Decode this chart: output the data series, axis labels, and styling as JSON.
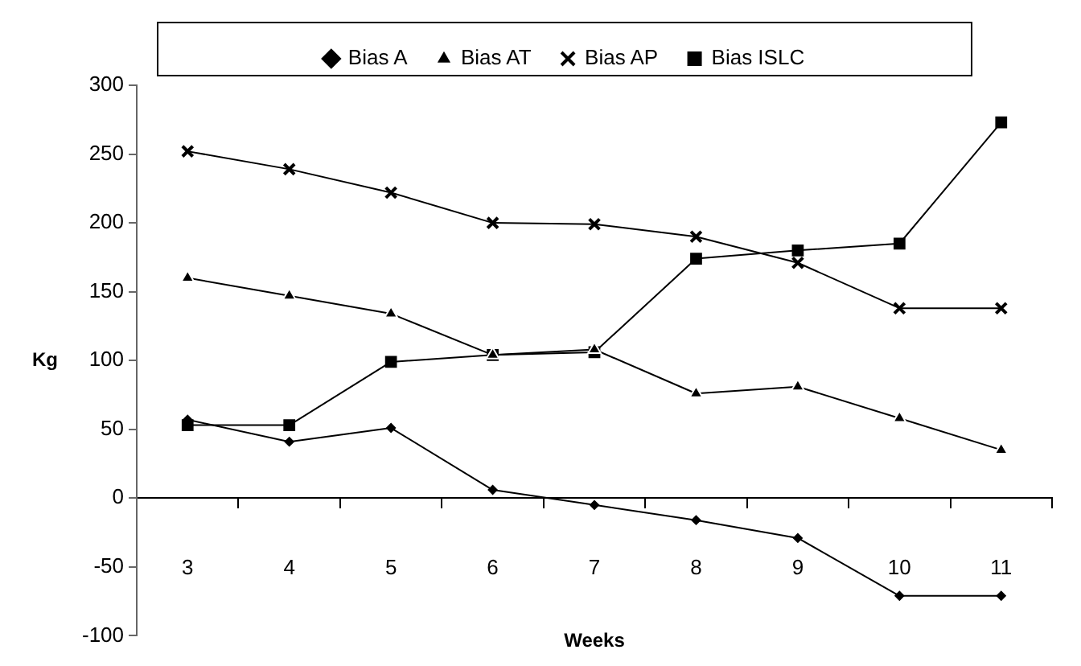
{
  "chart_data": {
    "type": "line",
    "xlabel": "Weeks",
    "ylabel": "Kg",
    "categories": [
      "3",
      "4",
      "5",
      "6",
      "7",
      "8",
      "9",
      "10",
      "11"
    ],
    "series": [
      {
        "name": "Bias A",
        "color": "#000000",
        "marker": "diamond",
        "values": [
          57,
          41,
          51,
          6,
          -5,
          -16,
          -29,
          -71,
          -71
        ]
      },
      {
        "name": "Bias AT",
        "color": "#000000",
        "marker": "triangle",
        "values": [
          160,
          147,
          134,
          104,
          108,
          76,
          81,
          58,
          35
        ]
      },
      {
        "name": "Bias AP",
        "color": "#000000",
        "marker": "cross",
        "values": [
          252,
          239,
          222,
          200,
          199,
          190,
          171,
          138,
          138
        ]
      },
      {
        "name": "Bias ISLC",
        "color": "#000000",
        "marker": "square",
        "values": [
          53,
          53,
          99,
          104,
          106,
          174,
          180,
          185,
          273
        ]
      }
    ],
    "ylim": [
      -100,
      300
    ],
    "yticks": [
      -100,
      -50,
      0,
      50,
      100,
      150,
      200,
      250,
      300
    ],
    "legend": "top",
    "line_style": "solid"
  }
}
